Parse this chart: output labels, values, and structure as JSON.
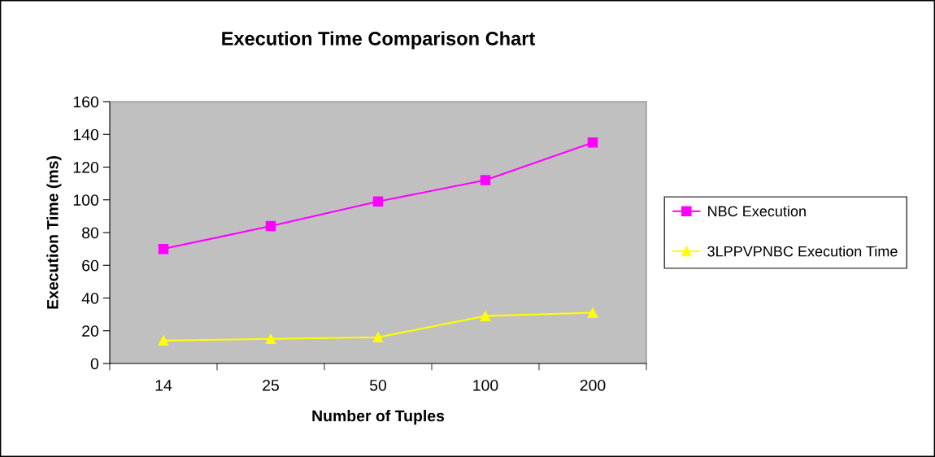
{
  "chart_data": {
    "type": "line",
    "title": "Execution Time Comparison Chart",
    "xlabel": "Number of Tuples",
    "ylabel": "Execution Time (ms)",
    "categories": [
      "14",
      "25",
      "50",
      "100",
      "200"
    ],
    "series": [
      {
        "name": "NBC Execution",
        "color": "#ff00ff",
        "marker": "square",
        "values": [
          70,
          84,
          99,
          112,
          135
        ]
      },
      {
        "name": "3LPPVPNBC Execution Time",
        "color": "#ffff00",
        "marker": "triangle",
        "values": [
          14,
          15,
          16,
          29,
          31
        ]
      }
    ],
    "ylim": [
      0,
      160
    ],
    "yticks": [
      0,
      20,
      40,
      60,
      80,
      100,
      120,
      140,
      160
    ],
    "grid": false,
    "legend": "right",
    "line_style": "solid"
  }
}
